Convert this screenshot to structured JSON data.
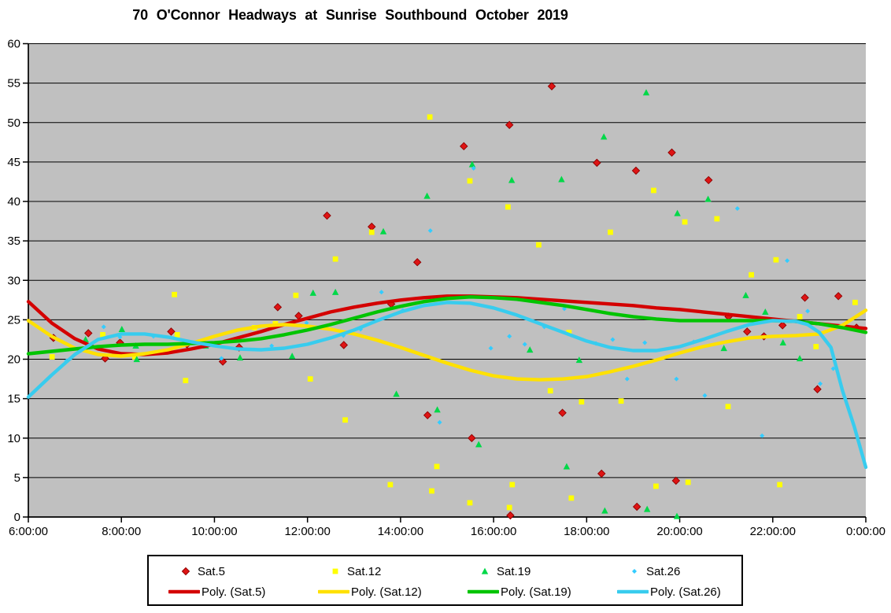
{
  "title": "70 O'Connor Headways at Sunrise Southbound October 2019",
  "colors": {
    "plot_bg": "#C0C0C0",
    "grid": "#000000",
    "axis": "#000000",
    "sat5": "#DE1414",
    "sat5_edge": "#8E0000",
    "sat12": "#FFFF00",
    "sat19": "#00D848",
    "sat26": "#33CCFF",
    "poly5": "#D40000",
    "poly12": "#FFE100",
    "poly19": "#00C400",
    "poly26": "#38CCEE"
  },
  "chart_data": {
    "type": "scatter",
    "title": "70 O'Connor Headways at Sunrise Southbound October 2019",
    "xlabel": "",
    "ylabel": "",
    "x_range_hours": [
      6,
      24
    ],
    "ylim": [
      0,
      60
    ],
    "y_tick_step": 5,
    "y_ticks": [
      "0",
      "5",
      "10",
      "15",
      "20",
      "25",
      "30",
      "35",
      "40",
      "45",
      "50",
      "55",
      "60"
    ],
    "x_ticks": [
      "6:00:00",
      "8:00:00",
      "10:00:00",
      "12:00:00",
      "14:00:00",
      "16:00:00",
      "18:00:00",
      "20:00:00",
      "22:00:00",
      "0:00:00"
    ],
    "x_tick_hours": [
      6,
      8,
      10,
      12,
      14,
      16,
      18,
      20,
      22,
      24
    ],
    "grid": "horizontal",
    "legend_position": "bottom",
    "series": [
      {
        "name": "Sat.5",
        "marker": "diamond",
        "points": [
          [
            6.54,
            22.7
          ],
          [
            7.29,
            23.3
          ],
          [
            7.65,
            20.1
          ],
          [
            7.97,
            22.1
          ],
          [
            9.07,
            23.5
          ],
          [
            9.41,
            21.9
          ],
          [
            10.18,
            19.7
          ],
          [
            10.53,
            21.5
          ],
          [
            11.36,
            26.6
          ],
          [
            11.81,
            25.5
          ],
          [
            12.42,
            38.2
          ],
          [
            12.78,
            21.8
          ],
          [
            13.38,
            36.8
          ],
          [
            13.8,
            27.0
          ],
          [
            14.36,
            32.3
          ],
          [
            14.58,
            12.9
          ],
          [
            15.36,
            47.0
          ],
          [
            15.53,
            10.0
          ],
          [
            16.34,
            49.7
          ],
          [
            16.36,
            0.2
          ],
          [
            17.25,
            54.6
          ],
          [
            17.48,
            13.2
          ],
          [
            18.22,
            44.9
          ],
          [
            18.32,
            5.5
          ],
          [
            19.06,
            43.9
          ],
          [
            19.08,
            1.3
          ],
          [
            19.83,
            46.2
          ],
          [
            19.92,
            4.6
          ],
          [
            20.62,
            42.7
          ],
          [
            21.05,
            25.4
          ],
          [
            21.45,
            23.5
          ],
          [
            21.81,
            22.9
          ],
          [
            22.21,
            24.3
          ],
          [
            22.69,
            27.8
          ],
          [
            22.96,
            16.2
          ],
          [
            23.41,
            28.0
          ],
          [
            23.8,
            24.0
          ]
        ]
      },
      {
        "name": "Sat.12",
        "marker": "square",
        "points": [
          [
            6.51,
            20.3
          ],
          [
            7.6,
            23.1
          ],
          [
            8.29,
            20.3
          ],
          [
            9.14,
            28.2
          ],
          [
            9.2,
            23.1
          ],
          [
            9.38,
            17.3
          ],
          [
            10.08,
            22.0
          ],
          [
            10.86,
            24.0
          ],
          [
            11.31,
            24.5
          ],
          [
            11.75,
            28.1
          ],
          [
            12.06,
            17.5
          ],
          [
            12.6,
            32.7
          ],
          [
            12.81,
            12.3
          ],
          [
            13.38,
            36.1
          ],
          [
            13.78,
            4.1
          ],
          [
            14.63,
            50.7
          ],
          [
            14.67,
            3.3
          ],
          [
            14.78,
            6.4
          ],
          [
            15.49,
            42.6
          ],
          [
            15.49,
            1.8
          ],
          [
            16.31,
            39.3
          ],
          [
            16.34,
            1.2
          ],
          [
            16.4,
            4.1
          ],
          [
            16.97,
            34.5
          ],
          [
            17.22,
            16.0
          ],
          [
            17.62,
            23.4
          ],
          [
            17.67,
            2.4
          ],
          [
            17.89,
            14.6
          ],
          [
            18.51,
            36.1
          ],
          [
            18.74,
            14.7
          ],
          [
            19.44,
            41.4
          ],
          [
            19.49,
            3.9
          ],
          [
            20.11,
            37.4
          ],
          [
            20.18,
            4.4
          ],
          [
            20.8,
            37.8
          ],
          [
            21.04,
            14.0
          ],
          [
            21.54,
            30.7
          ],
          [
            22.07,
            32.6
          ],
          [
            22.15,
            4.1
          ],
          [
            22.58,
            25.4
          ],
          [
            22.93,
            21.6
          ],
          [
            23.77,
            27.2
          ]
        ]
      },
      {
        "name": "Sat.19",
        "marker": "triangle",
        "points": [
          [
            7.23,
            22.5
          ],
          [
            8.01,
            23.8
          ],
          [
            8.31,
            21.7
          ],
          [
            8.33,
            20.0
          ],
          [
            9.81,
            21.7
          ],
          [
            10.55,
            20.2
          ],
          [
            11.67,
            20.4
          ],
          [
            12.12,
            28.4
          ],
          [
            12.6,
            28.5
          ],
          [
            13.63,
            36.2
          ],
          [
            13.91,
            15.6
          ],
          [
            14.57,
            40.7
          ],
          [
            14.79,
            13.6
          ],
          [
            15.54,
            44.7
          ],
          [
            15.68,
            9.2
          ],
          [
            16.39,
            42.7
          ],
          [
            16.78,
            21.2
          ],
          [
            17.46,
            42.8
          ],
          [
            17.57,
            6.4
          ],
          [
            17.84,
            19.9
          ],
          [
            18.37,
            48.2
          ],
          [
            18.39,
            0.8
          ],
          [
            19.28,
            53.8
          ],
          [
            19.3,
            1.0
          ],
          [
            19.94,
            0.1
          ],
          [
            19.95,
            38.5
          ],
          [
            20.61,
            40.3
          ],
          [
            20.95,
            21.4
          ],
          [
            21.42,
            28.1
          ],
          [
            21.84,
            26.0
          ],
          [
            22.22,
            22.1
          ],
          [
            22.58,
            20.1
          ]
        ]
      },
      {
        "name": "Sat.26",
        "marker": "dot",
        "points": [
          [
            6.82,
            19.8
          ],
          [
            7.62,
            24.1
          ],
          [
            7.97,
            22.8
          ],
          [
            8.69,
            22.9
          ],
          [
            9.79,
            22.5
          ],
          [
            10.15,
            20.1
          ],
          [
            11.23,
            21.7
          ],
          [
            11.98,
            24.6
          ],
          [
            12.77,
            23.0
          ],
          [
            13.14,
            23.8
          ],
          [
            13.59,
            28.5
          ],
          [
            14.05,
            26.2
          ],
          [
            14.64,
            36.3
          ],
          [
            14.84,
            12.0
          ],
          [
            15.57,
            44.2
          ],
          [
            15.94,
            21.4
          ],
          [
            16.34,
            22.9
          ],
          [
            16.67,
            21.9
          ],
          [
            17.09,
            24.1
          ],
          [
            17.52,
            26.4
          ],
          [
            18.2,
            22.0
          ],
          [
            18.56,
            22.5
          ],
          [
            18.87,
            17.5
          ],
          [
            19.25,
            22.1
          ],
          [
            19.93,
            17.5
          ],
          [
            20.3,
            22.2
          ],
          [
            20.54,
            15.4
          ],
          [
            21.24,
            39.1
          ],
          [
            21.77,
            10.3
          ],
          [
            22.31,
            32.5
          ],
          [
            22.75,
            26.1
          ],
          [
            23.02,
            16.9
          ],
          [
            23.3,
            18.8
          ]
        ]
      }
    ],
    "trendlines": [
      {
        "name": "Poly. (Sat.5)",
        "series": "Sat.5",
        "points": [
          [
            6,
            27.3
          ],
          [
            6.5,
            24.6
          ],
          [
            7,
            22.6
          ],
          [
            7.5,
            21.3
          ],
          [
            8,
            20.7
          ],
          [
            8.5,
            20.6
          ],
          [
            9,
            20.8
          ],
          [
            9.5,
            21.3
          ],
          [
            10,
            21.9
          ],
          [
            10.5,
            22.7
          ],
          [
            11,
            23.5
          ],
          [
            11.5,
            24.4
          ],
          [
            12,
            25.2
          ],
          [
            12.5,
            26.0
          ],
          [
            13,
            26.6
          ],
          [
            13.5,
            27.1
          ],
          [
            14,
            27.5
          ],
          [
            14.5,
            27.8
          ],
          [
            15,
            28.0
          ],
          [
            15.5,
            28.0
          ],
          [
            16,
            27.9
          ],
          [
            16.5,
            27.8
          ],
          [
            17,
            27.6
          ],
          [
            17.5,
            27.4
          ],
          [
            18,
            27.2
          ],
          [
            18.5,
            27.0
          ],
          [
            19,
            26.8
          ],
          [
            19.5,
            26.5
          ],
          [
            20,
            26.3
          ],
          [
            20.5,
            26.0
          ],
          [
            21,
            25.7
          ],
          [
            21.5,
            25.4
          ],
          [
            22,
            25.1
          ],
          [
            22.5,
            24.8
          ],
          [
            23,
            24.5
          ],
          [
            23.5,
            24.2
          ],
          [
            24,
            23.9
          ]
        ]
      },
      {
        "name": "Poly. (Sat.12)",
        "series": "Sat.12",
        "points": [
          [
            6,
            24.9
          ],
          [
            6.5,
            22.9
          ],
          [
            7,
            21.4
          ],
          [
            7.5,
            20.6
          ],
          [
            8,
            20.4
          ],
          [
            8.5,
            20.7
          ],
          [
            9,
            21.2
          ],
          [
            9.5,
            22.0
          ],
          [
            10,
            22.9
          ],
          [
            10.5,
            23.7
          ],
          [
            11,
            24.2
          ],
          [
            11.5,
            24.4
          ],
          [
            12,
            24.2
          ],
          [
            12.5,
            23.8
          ],
          [
            13,
            23.2
          ],
          [
            13.5,
            22.4
          ],
          [
            14,
            21.5
          ],
          [
            14.5,
            20.5
          ],
          [
            15,
            19.5
          ],
          [
            15.5,
            18.6
          ],
          [
            16,
            17.9
          ],
          [
            16.5,
            17.5
          ],
          [
            17,
            17.4
          ],
          [
            17.5,
            17.5
          ],
          [
            18,
            17.8
          ],
          [
            18.5,
            18.4
          ],
          [
            19,
            19.1
          ],
          [
            19.5,
            19.9
          ],
          [
            20,
            20.8
          ],
          [
            20.5,
            21.6
          ],
          [
            21,
            22.2
          ],
          [
            21.5,
            22.7
          ],
          [
            22,
            22.9
          ],
          [
            22.5,
            23.0
          ],
          [
            23,
            23.2
          ],
          [
            23.5,
            24.3
          ],
          [
            24,
            26.2
          ]
        ]
      },
      {
        "name": "Poly. (Sat.19)",
        "series": "Sat.19",
        "points": [
          [
            6,
            20.7
          ],
          [
            6.5,
            21.0
          ],
          [
            7,
            21.3
          ],
          [
            7.5,
            21.6
          ],
          [
            8,
            21.8
          ],
          [
            8.5,
            21.9
          ],
          [
            9,
            21.9
          ],
          [
            9.5,
            22.0
          ],
          [
            10,
            22.1
          ],
          [
            10.5,
            22.3
          ],
          [
            11,
            22.6
          ],
          [
            11.5,
            23.1
          ],
          [
            12,
            23.7
          ],
          [
            12.5,
            24.4
          ],
          [
            13,
            25.2
          ],
          [
            13.5,
            26.0
          ],
          [
            14,
            26.7
          ],
          [
            14.5,
            27.3
          ],
          [
            15,
            27.7
          ],
          [
            15.5,
            27.9
          ],
          [
            16,
            27.8
          ],
          [
            16.5,
            27.6
          ],
          [
            17,
            27.2
          ],
          [
            17.5,
            26.8
          ],
          [
            18,
            26.3
          ],
          [
            18.5,
            25.8
          ],
          [
            19,
            25.4
          ],
          [
            19.5,
            25.1
          ],
          [
            20,
            24.9
          ],
          [
            20.5,
            24.9
          ],
          [
            21,
            24.9
          ],
          [
            21.5,
            24.9
          ],
          [
            22,
            24.9
          ],
          [
            22.5,
            24.8
          ],
          [
            23,
            24.5
          ],
          [
            23.5,
            24.0
          ],
          [
            24,
            23.4
          ]
        ]
      },
      {
        "name": "Poly. (Sat.26)",
        "series": "Sat.26",
        "points": [
          [
            6,
            15.2
          ],
          [
            6.5,
            18.0
          ],
          [
            7,
            20.6
          ],
          [
            7.5,
            22.5
          ],
          [
            8,
            23.2
          ],
          [
            8.5,
            23.2
          ],
          [
            9,
            22.8
          ],
          [
            9.5,
            22.2
          ],
          [
            10,
            21.7
          ],
          [
            10.5,
            21.3
          ],
          [
            11,
            21.2
          ],
          [
            11.5,
            21.4
          ],
          [
            12,
            21.9
          ],
          [
            12.5,
            22.7
          ],
          [
            13,
            23.7
          ],
          [
            13.5,
            24.9
          ],
          [
            14,
            26.0
          ],
          [
            14.5,
            26.8
          ],
          [
            15,
            27.2
          ],
          [
            15.5,
            27.1
          ],
          [
            16,
            26.5
          ],
          [
            16.5,
            25.6
          ],
          [
            17,
            24.5
          ],
          [
            17.5,
            23.4
          ],
          [
            18,
            22.3
          ],
          [
            18.5,
            21.5
          ],
          [
            19,
            21.1
          ],
          [
            19.5,
            21.1
          ],
          [
            20,
            21.6
          ],
          [
            20.5,
            22.5
          ],
          [
            21,
            23.5
          ],
          [
            21.5,
            24.4
          ],
          [
            22,
            24.9
          ],
          [
            22.5,
            24.8
          ],
          [
            22.75,
            24.4
          ],
          [
            23,
            23.4
          ],
          [
            23.25,
            21.5
          ],
          [
            23.5,
            16.0
          ],
          [
            23.75,
            11.5
          ],
          [
            24,
            6.3
          ]
        ]
      }
    ]
  },
  "legend": {
    "marker_entries": [
      "Sat.5",
      "Sat.12",
      "Sat.19",
      "Sat.26"
    ],
    "line_entries": [
      "Poly. (Sat.5)",
      "Poly. (Sat.12)",
      "Poly. (Sat.19)",
      "Poly. (Sat.26)"
    ]
  }
}
